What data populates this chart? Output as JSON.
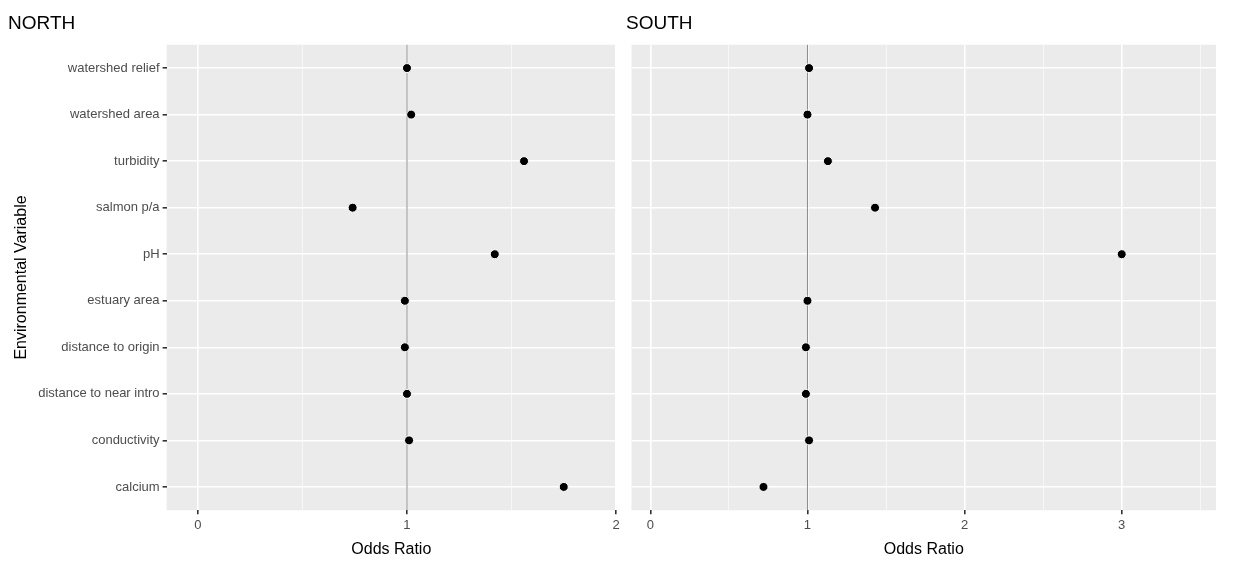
{
  "chart_data": [
    {
      "type": "scatter",
      "title": "NORTH",
      "xlabel": "Odds Ratio",
      "ylabel": "Environmental Variable",
      "categories": [
        "watershed relief",
        "watershed area",
        "turbidity",
        "salmon p/a",
        "pH",
        "estuary area",
        "distance to origin",
        "distance to near intro",
        "conductivity",
        "calcium"
      ],
      "orientation": "horizontal",
      "values": [
        1.0,
        1.02,
        1.56,
        0.74,
        1.42,
        0.99,
        0.99,
        1.0,
        1.01,
        1.75
      ],
      "color": "#000000",
      "marker": "circle",
      "xlim": [
        -0.15,
        2.0
      ],
      "xticks": [
        0,
        {
          "value": 0.5,
          "label": null
        },
        1,
        {
          "value": 1.5,
          "label": null
        },
        2
      ],
      "grid": true,
      "ref_lines": [
        {
          "axis": "x",
          "value": 1,
          "color": "#8c8c8c"
        }
      ]
    },
    {
      "type": "scatter",
      "title": "SOUTH",
      "xlabel": "Odds Ratio",
      "categories": [
        null,
        null,
        null,
        null,
        null,
        null,
        null,
        null,
        null,
        null
      ],
      "orientation": "horizontal",
      "values": [
        1.01,
        1.0,
        1.13,
        1.43,
        3.0,
        1.0,
        0.99,
        0.99,
        1.01,
        0.72
      ],
      "color": "#000000",
      "marker": "circle",
      "xlim": [
        -0.12,
        3.6
      ],
      "xticks": [
        0,
        {
          "value": 0.5,
          "label": null
        },
        1,
        {
          "value": 1.5,
          "label": null
        },
        2,
        {
          "value": 2.5,
          "label": null
        },
        3,
        {
          "value": 3.5,
          "label": null
        }
      ],
      "grid": true,
      "tick_labels": "x",
      "ref_lines": [
        {
          "axis": "x",
          "value": 1,
          "color": "#8c8c8c"
        }
      ]
    }
  ]
}
